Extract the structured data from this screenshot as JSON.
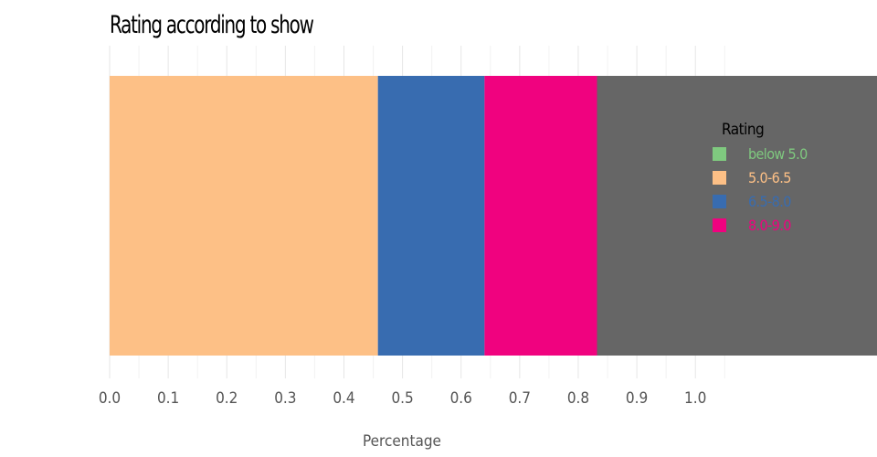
{
  "chart_data": {
    "type": "bar",
    "orientation": "horizontal",
    "stacked": true,
    "title": "Rating according to show",
    "xlabel": "Percentage",
    "ylabel": "",
    "xlim": [
      0,
      1.31
    ],
    "xticks": [
      "0.0",
      "0.1",
      "0.2",
      "0.3",
      "0.4",
      "0.5",
      "0.6",
      "0.7",
      "0.8",
      "0.9",
      "1.0"
    ],
    "grid": true,
    "legend_title": "Rating",
    "legend_position": "right",
    "series": [
      {
        "name": "below 5.0",
        "value": 0.0,
        "color": "#7fc97f"
      },
      {
        "name": "5.0-6.5",
        "value": 0.458,
        "color": "#fdc086"
      },
      {
        "name": "6.5-8.0",
        "value": 0.182,
        "color": "#386cb0"
      },
      {
        "name": "8.0-9.0",
        "value": 0.192,
        "color": "#f0027f"
      },
      {
        "name": "",
        "value": 0.48,
        "color": "#666666"
      }
    ],
    "legend": [
      {
        "name": "below 5.0",
        "color": "#7fc97f"
      },
      {
        "name": "5.0-6.5",
        "color": "#fdc086"
      },
      {
        "name": "6.5-8.0",
        "color": "#386cb0"
      },
      {
        "name": "8.0-9.0",
        "color": "#f0027f"
      }
    ]
  }
}
